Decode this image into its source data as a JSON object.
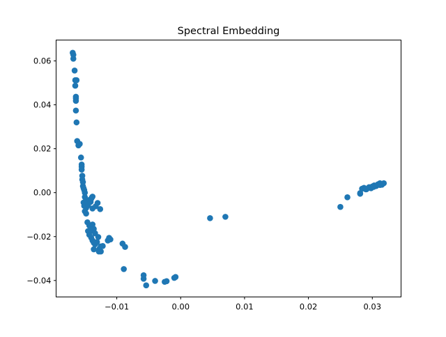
{
  "chart_data": {
    "type": "scatter",
    "title": "Spectral Embedding",
    "xlabel": "",
    "ylabel": "",
    "xlim": [
      -0.0195,
      0.0345
    ],
    "ylim": [
      -0.0475,
      0.0695
    ],
    "xticks": [
      -0.01,
      0.0,
      0.01,
      0.02,
      0.03
    ],
    "xtick_labels": [
      "−0.01",
      "0.00",
      "0.01",
      "0.02",
      "0.03"
    ],
    "yticks": [
      -0.04,
      -0.02,
      0.0,
      0.02,
      0.04,
      0.06
    ],
    "ytick_labels": [
      "−0.04",
      "−0.02",
      "0.00",
      "0.02",
      "0.04",
      "0.06"
    ],
    "grid": false,
    "marker_color": "#1f77b4",
    "series": [
      {
        "x": [
          -0.0169,
          -0.0168,
          -0.0168,
          -0.0166,
          -0.0165,
          -0.0163,
          -0.0165,
          -0.0164,
          -0.0164,
          -0.0164,
          -0.0164,
          -0.0163,
          -0.0162,
          -0.016,
          -0.0158,
          -0.0156,
          -0.0155,
          -0.0155,
          -0.0155,
          -0.0154,
          -0.0154,
          -0.0153,
          -0.0153,
          -0.0152,
          -0.0151,
          -0.015,
          -0.015,
          -0.0152,
          -0.0149,
          -0.0147,
          -0.0146,
          -0.0151,
          -0.0148,
          -0.0145,
          -0.0144,
          -0.0142,
          -0.0141,
          -0.014,
          -0.0139,
          -0.0138,
          -0.015,
          -0.0148,
          -0.0146,
          -0.0143,
          -0.014,
          -0.0138,
          -0.0136,
          -0.0134,
          -0.0145,
          -0.0143,
          -0.014,
          -0.0138,
          -0.0136,
          -0.0134,
          -0.0131,
          -0.0129,
          -0.0127,
          -0.0125,
          -0.0122,
          -0.0135,
          -0.0136,
          -0.0128,
          -0.0125,
          -0.0138,
          -0.0133,
          -0.013,
          -0.0126,
          -0.0114,
          -0.0112,
          -0.011,
          -0.0091,
          -0.0087,
          -0.0089,
          -0.0058,
          -0.0058,
          -0.0054,
          -0.004,
          -0.0025,
          -0.0022,
          -0.001,
          -0.0008,
          0.0046,
          0.007,
          0.025,
          0.0261,
          0.0281,
          0.0284,
          0.0287,
          0.0291,
          0.0295,
          0.0298,
          0.03,
          0.0303,
          0.0306,
          0.0309,
          0.0312,
          0.0315,
          0.0318,
          0.0281,
          0.029,
          0.0302,
          0.0312
        ],
        "y": [
          0.0637,
          0.0628,
          0.061,
          0.0556,
          0.0512,
          0.0512,
          0.0487,
          0.0437,
          0.043,
          0.0418,
          0.0374,
          0.032,
          0.0235,
          0.0215,
          0.0222,
          0.016,
          0.0128,
          0.0118,
          0.0105,
          0.0077,
          0.006,
          0.0048,
          0.003,
          0.002,
          0.0012,
          0.0,
          -0.002,
          -0.0045,
          -0.004,
          -0.0035,
          -0.0047,
          -0.006,
          -0.007,
          -0.0058,
          -0.0045,
          -0.0032,
          -0.0042,
          -0.0028,
          -0.0022,
          -0.0018,
          -0.0085,
          -0.0095,
          -0.0135,
          -0.015,
          -0.0172,
          -0.0145,
          -0.0165,
          -0.0185,
          -0.0175,
          -0.0192,
          -0.0205,
          -0.0218,
          -0.0228,
          -0.0235,
          -0.0225,
          -0.0202,
          -0.0255,
          -0.0268,
          -0.0243,
          -0.0228,
          -0.0258,
          -0.0268,
          -0.0245,
          -0.0072,
          -0.0062,
          -0.0047,
          -0.0075,
          -0.0218,
          -0.0206,
          -0.0213,
          -0.0232,
          -0.0247,
          -0.0348,
          -0.0376,
          -0.0392,
          -0.0422,
          -0.0402,
          -0.0406,
          -0.0403,
          -0.0388,
          -0.0384,
          -0.0116,
          -0.011,
          -0.0065,
          -0.0021,
          -0.0002,
          0.0018,
          0.0022,
          0.0016,
          0.0025,
          0.002,
          0.0028,
          0.0033,
          0.003,
          0.0038,
          0.0043,
          0.0036,
          0.0043,
          -0.0005,
          0.0015,
          0.0026,
          0.0035
        ]
      }
    ]
  }
}
